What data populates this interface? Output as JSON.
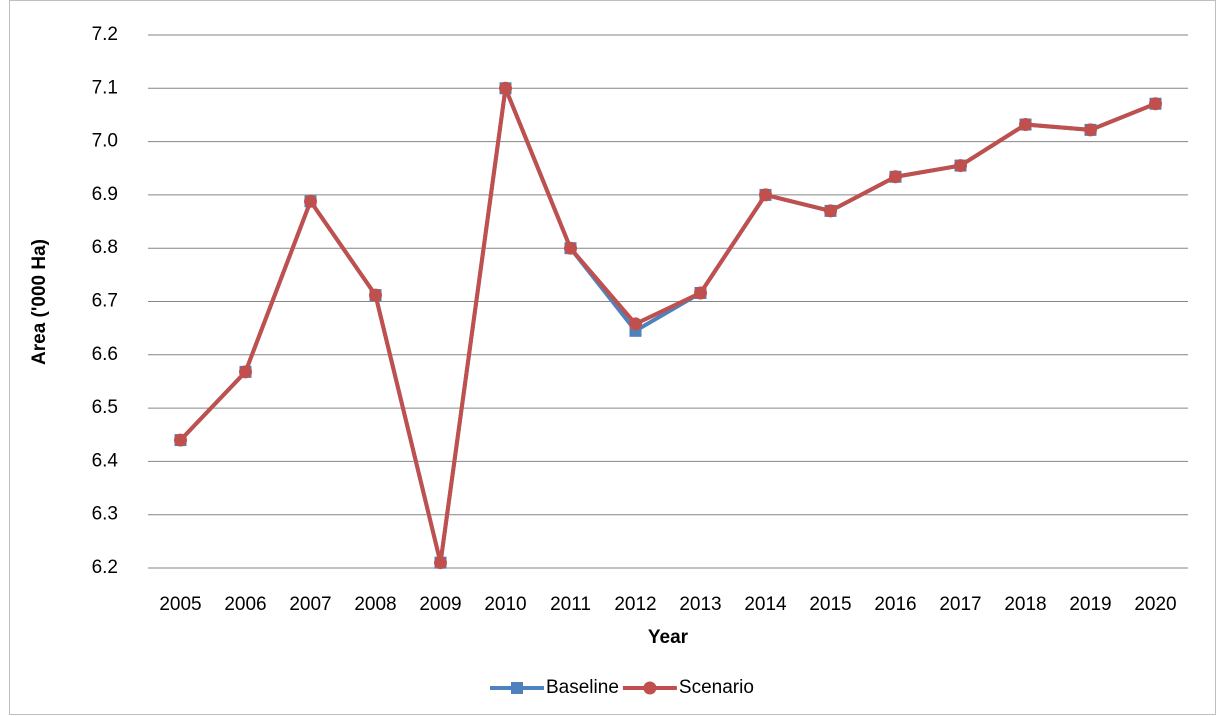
{
  "chart_data": {
    "type": "line",
    "y_label": "Area ('000 Ha)",
    "x_label": "Year",
    "categories": [
      "2005",
      "2006",
      "2007",
      "2008",
      "2009",
      "2010",
      "2011",
      "2012",
      "2013",
      "2014",
      "2015",
      "2016",
      "2017",
      "2018",
      "2019",
      "2020"
    ],
    "series": [
      {
        "name": "Baseline",
        "color": "#4f81bd",
        "marker": "square",
        "values": [
          6.44,
          6.568,
          6.888,
          6.712,
          6.21,
          7.1,
          6.8,
          6.645,
          6.716,
          6.9,
          6.87,
          6.934,
          6.955,
          7.032,
          7.022,
          7.071
        ]
      },
      {
        "name": "Scenario",
        "color": "#c0504d",
        "marker": "circle",
        "values": [
          6.44,
          6.568,
          6.888,
          6.712,
          6.21,
          7.1,
          6.8,
          6.658,
          6.716,
          6.9,
          6.87,
          6.934,
          6.955,
          7.032,
          7.022,
          7.071
        ]
      }
    ],
    "ylim": [
      6.2,
      7.2
    ],
    "yticks": [
      6.2,
      6.3,
      6.4,
      6.5,
      6.6,
      6.7,
      6.8,
      6.9,
      {
        "value": 7,
        "label": "7.0"
      },
      7.1,
      7.2
    ],
    "grid": true,
    "legend": "bottom"
  }
}
